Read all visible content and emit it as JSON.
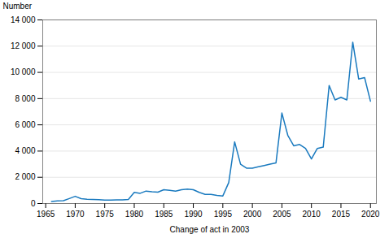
{
  "chart_data": {
    "type": "line",
    "xlabel": "Change of act in 2003",
    "ylabel": "Number",
    "x": [
      1966,
      1967,
      1968,
      1969,
      1970,
      1971,
      1972,
      1973,
      1974,
      1975,
      1976,
      1977,
      1978,
      1979,
      1980,
      1981,
      1982,
      1983,
      1984,
      1985,
      1986,
      1987,
      1988,
      1989,
      1990,
      1991,
      1992,
      1993,
      1994,
      1995,
      1996,
      1997,
      1998,
      1999,
      2000,
      2001,
      2002,
      2003,
      2004,
      2005,
      2006,
      2007,
      2008,
      2009,
      2010,
      2011,
      2012,
      2013,
      2014,
      2015,
      2016,
      2017,
      2018,
      2019,
      2020
    ],
    "values": [
      150,
      200,
      220,
      380,
      550,
      370,
      330,
      310,
      290,
      270,
      270,
      280,
      280,
      310,
      850,
      780,
      950,
      900,
      870,
      1050,
      1000,
      950,
      1050,
      1100,
      1050,
      850,
      700,
      700,
      620,
      580,
      1600,
      4700,
      3000,
      2700,
      2700,
      2800,
      2900,
      3000,
      3100,
      6900,
      5200,
      4400,
      4500,
      4200,
      3400,
      4200,
      4300,
      9000,
      7900,
      8100,
      7900,
      12300,
      9500,
      9600,
      7800
    ],
    "color": "#1a7abf",
    "xlim": [
      1964.5,
      2021
    ],
    "xticks": [
      1965,
      1970,
      1975,
      1980,
      1985,
      1990,
      1995,
      2000,
      2005,
      2010,
      2015,
      2020
    ],
    "ylim": [
      0,
      14000
    ],
    "yticks": [
      0,
      {
        "value": 2000,
        "label": "2 000"
      },
      {
        "value": 4000,
        "label": "4 000"
      },
      {
        "value": 6000,
        "label": "6 000"
      },
      {
        "value": 8000,
        "label": "8 000"
      },
      {
        "value": 10000,
        "label": "10 000"
      },
      {
        "value": 12000,
        "label": "12 000"
      },
      {
        "value": 14000,
        "label": "14 000"
      }
    ],
    "grid": true
  }
}
